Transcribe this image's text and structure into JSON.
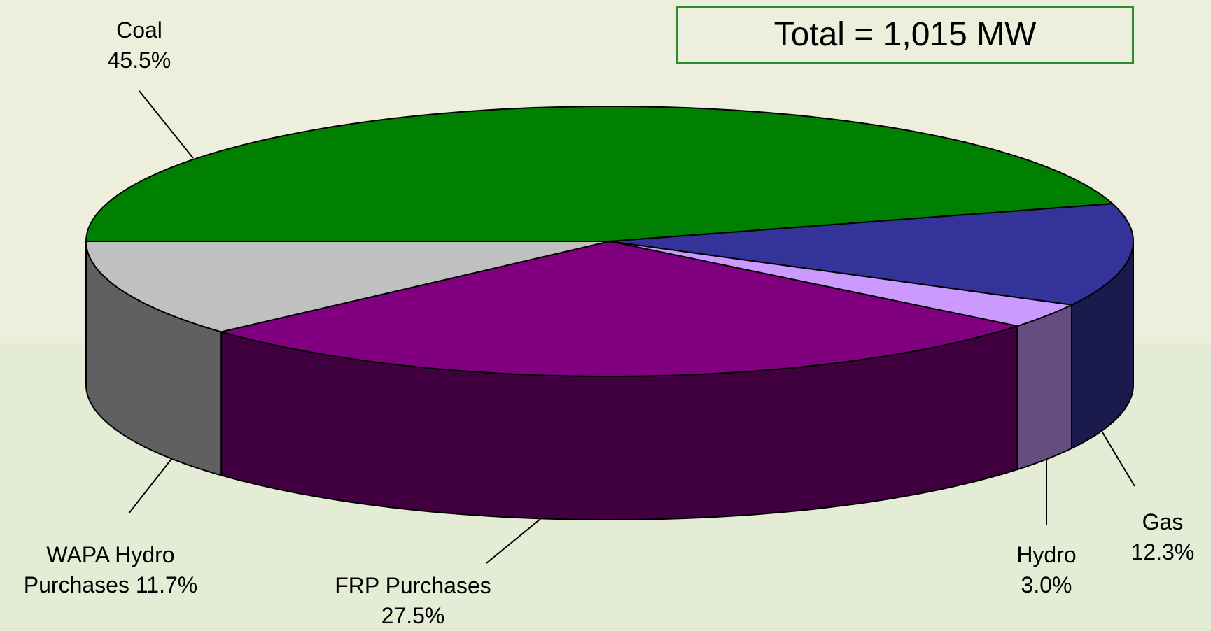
{
  "chart_data": {
    "type": "pie3d",
    "annotation": "Total = 1,015 MW",
    "categories": [
      "Coal",
      "Gas",
      "Hydro",
      "FRP Purchases",
      "WAPA Hydro Purchases"
    ],
    "values": [
      45.5,
      12.3,
      3.0,
      27.5,
      11.7
    ],
    "value_labels": [
      "45.5%",
      "12.3%",
      "3.0%",
      "27.5%",
      "11.7%"
    ],
    "colors": [
      "#008000",
      "#333399",
      "#cc99ff",
      "#800080",
      "#c0c0c0"
    ]
  }
}
